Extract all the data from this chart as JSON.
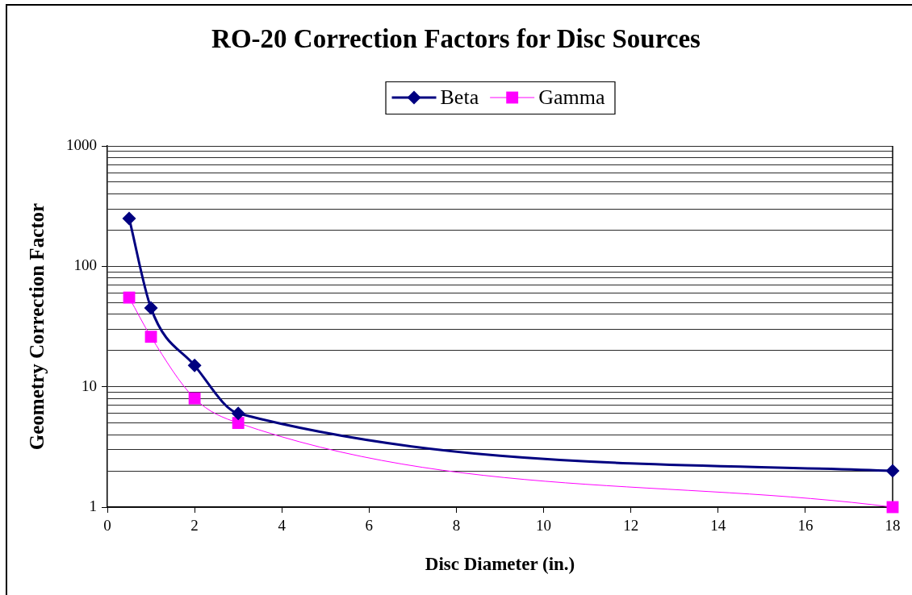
{
  "chart_data": {
    "type": "line",
    "title": "RO-20 Correction Factors for Disc Sources",
    "xlabel": "Disc Diameter (in.)",
    "ylabel": "Geometry Correction Factor",
    "x": [
      0.5,
      1,
      2,
      3,
      18
    ],
    "series": [
      {
        "name": "Beta",
        "color": "#000080",
        "marker": "diamond",
        "values": [
          250,
          45,
          15,
          6,
          2
        ]
      },
      {
        "name": "Gamma",
        "color": "#ff00ff",
        "marker": "square",
        "values": [
          55,
          26,
          8,
          5,
          1
        ]
      }
    ],
    "xlim": [
      0,
      18
    ],
    "xticks": [
      0,
      2,
      4,
      6,
      8,
      10,
      12,
      14,
      16,
      18
    ],
    "ylim": [
      1,
      1000
    ],
    "yticks": [
      1,
      {
        "value": 2,
        "label": null
      },
      {
        "value": 3,
        "label": null
      },
      {
        "value": 4,
        "label": null
      },
      {
        "value": 5,
        "label": null
      },
      {
        "value": 6,
        "label": null
      },
      {
        "value": 7,
        "label": null
      },
      {
        "value": 8,
        "label": null
      },
      {
        "value": 9,
        "label": null
      },
      10,
      {
        "value": 20,
        "label": null
      },
      {
        "value": 30,
        "label": null
      },
      {
        "value": 40,
        "label": null
      },
      {
        "value": 50,
        "label": null
      },
      {
        "value": 60,
        "label": null
      },
      {
        "value": 70,
        "label": null
      },
      {
        "value": 80,
        "label": null
      },
      {
        "value": 90,
        "label": null
      },
      100,
      {
        "value": 200,
        "label": null
      },
      {
        "value": 300,
        "label": null
      },
      {
        "value": 400,
        "label": null
      },
      {
        "value": 500,
        "label": null
      },
      {
        "value": 600,
        "label": null
      },
      {
        "value": 700,
        "label": null
      },
      {
        "value": 800,
        "label": null
      },
      {
        "value": 900,
        "label": null
      },
      1000
    ],
    "log": true,
    "grid": "y",
    "legend": "top"
  }
}
